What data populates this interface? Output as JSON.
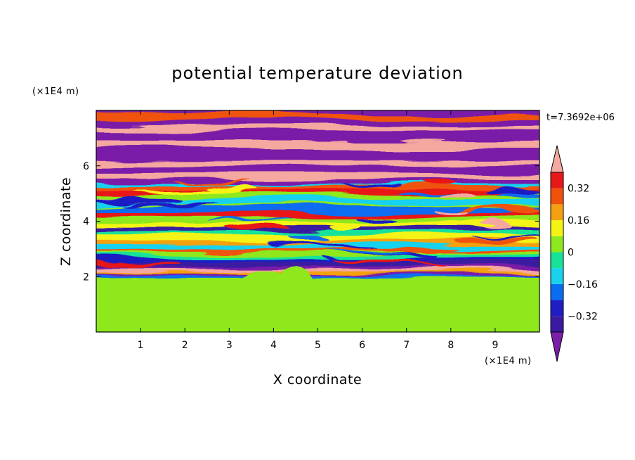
{
  "chart_data": {
    "type": "heatmap",
    "title": "potential temperature deviation",
    "xlabel": "X coordinate",
    "ylabel": "Z coordinate",
    "x_unit": "(×1E4 m)",
    "y_unit": "(×1E4 m)",
    "timestamp": "t=7.3692e+06",
    "xlim": [
      0,
      10
    ],
    "ylim": [
      0,
      8
    ],
    "x_ticks": [
      1,
      2,
      3,
      4,
      5,
      6,
      7,
      8,
      9
    ],
    "y_ticks": [
      2,
      4,
      6
    ],
    "x_tick_labels": [
      "1",
      "2",
      "3",
      "4",
      "5",
      "6",
      "7",
      "8",
      "9"
    ],
    "y_tick_labels": [
      "2",
      "4",
      "6"
    ],
    "colorbar": {
      "levels": [
        -0.4,
        -0.32,
        -0.24,
        -0.16,
        -0.08,
        0,
        0.08,
        0.16,
        0.24,
        0.32,
        0.4
      ],
      "tick_values": [
        -0.32,
        -0.16,
        0,
        0.16,
        0.32
      ],
      "tick_labels": [
        "−0.32",
        "−0.16",
        "0",
        "0.16",
        "0.32"
      ],
      "under_color": "#7a1fa8",
      "over_color": "#f5a8a0",
      "colors": [
        "#3a1aa0",
        "#1e1ec4",
        "#0a6cf0",
        "#18d2ee",
        "#18e29a",
        "#8ee81e",
        "#f4f414",
        "#f5a010",
        "#f0520c",
        "#e81818"
      ]
    },
    "field_description_by_height": [
      {
        "z": [
          0,
          2.0
        ],
        "dominant": [
          0,
          0.08
        ],
        "note": "green / light-green mixed layer"
      },
      {
        "z": [
          2.0,
          2.4
        ],
        "dominant": [
          -0.4,
          0.4
        ],
        "note": "thin strongly alternating band"
      },
      {
        "z": [
          2.4,
          5.5
        ],
        "dominant": [
          -0.32,
          0.32
        ],
        "note": "layered cyan/blue with orange-red streaks"
      },
      {
        "z": [
          5.5,
          8.0
        ],
        "dominant": [
          -0.48,
          0.48
        ],
        "note": "alternating purple and pink layers"
      }
    ]
  }
}
